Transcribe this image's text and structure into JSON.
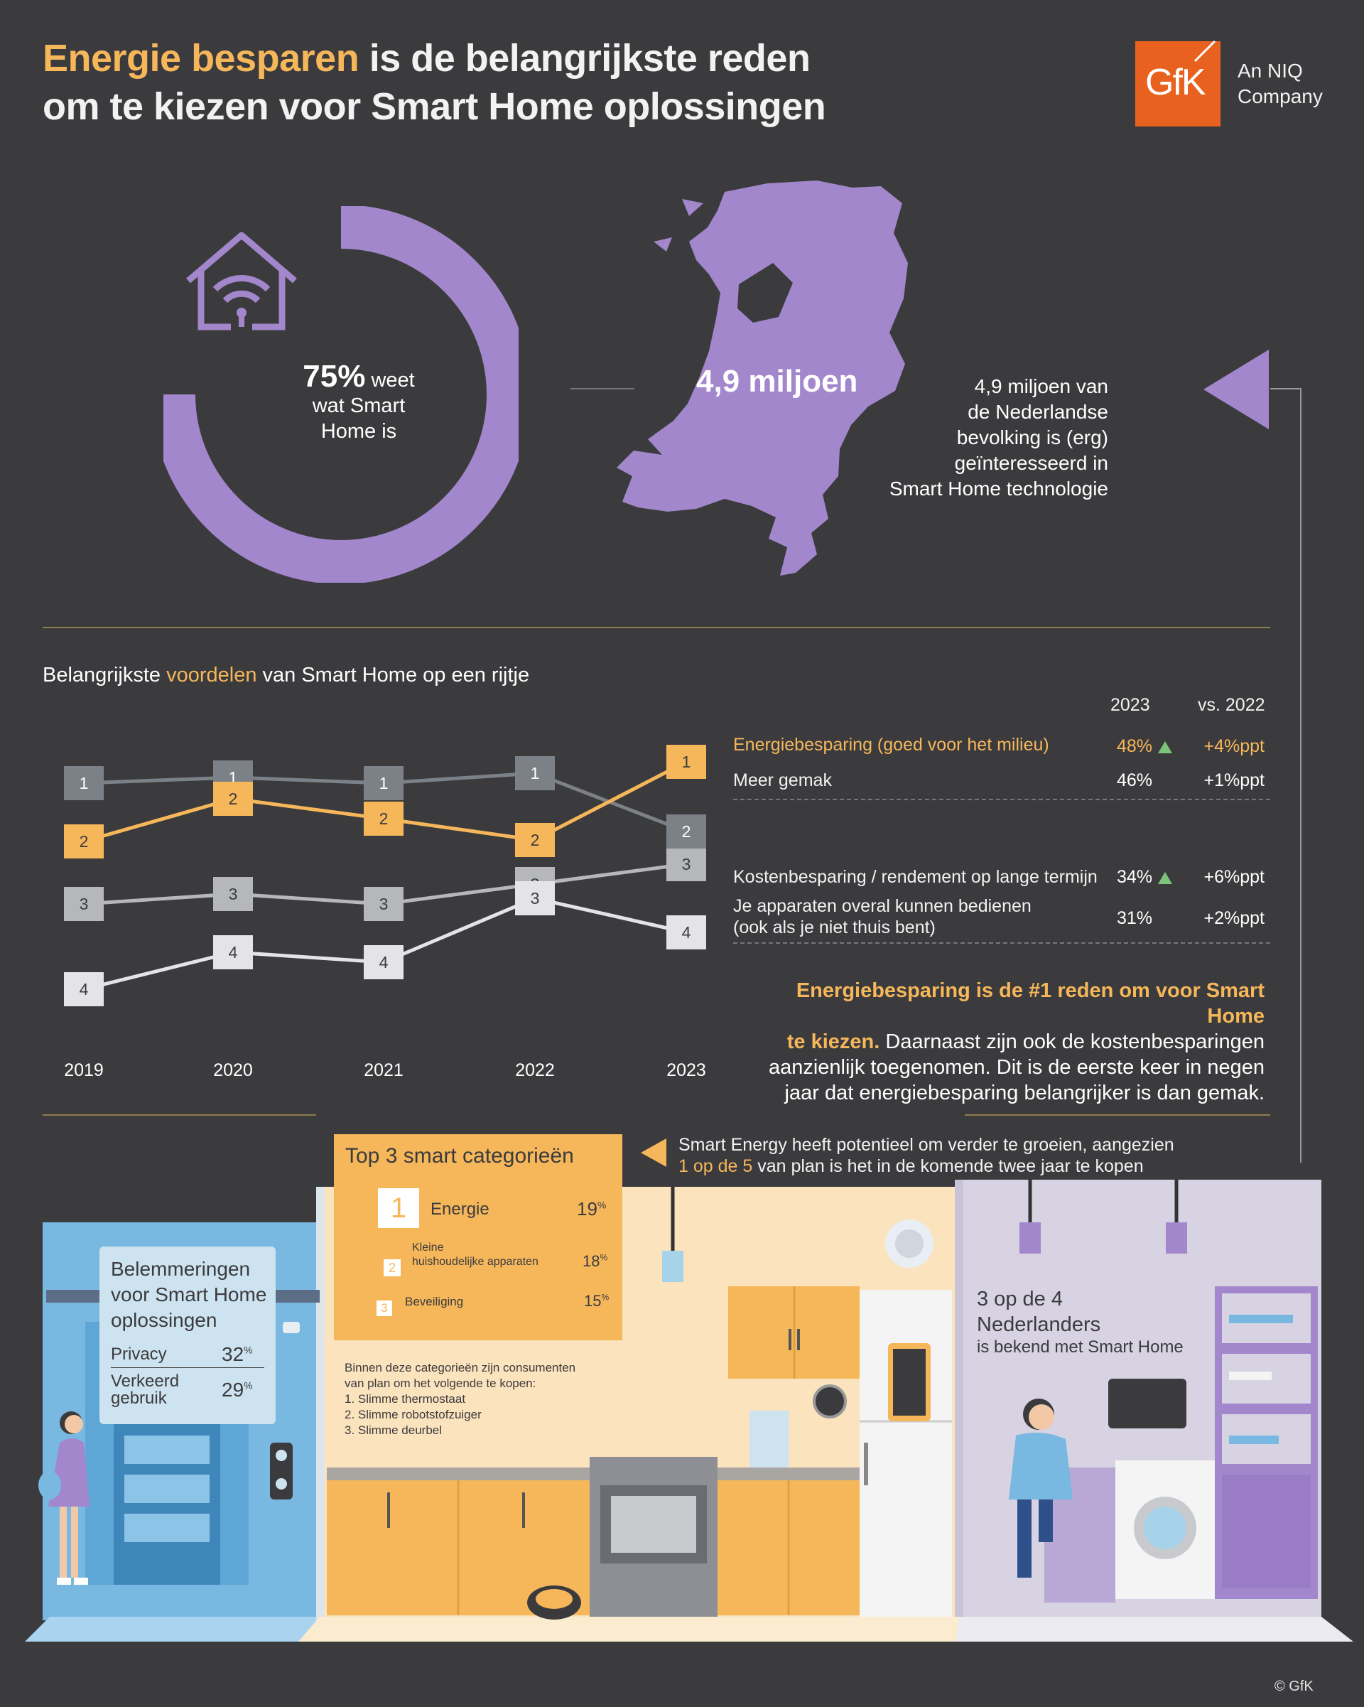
{
  "header": {
    "title_highlight": "Energie besparen",
    "title_rest_line1": " is de belangrijkste reden",
    "title_line2": "om te kiezen voor Smart Home oplossingen",
    "logo_text": "GfK",
    "logo_sub_line1": "An NIQ",
    "logo_sub_line2": "Company"
  },
  "awareness": {
    "percent": "75%",
    "percent_value": 75,
    "text_1": "weet",
    "text_2": "wat Smart",
    "text_3": "Home is",
    "icon": "smart-home-wifi-icon"
  },
  "interest": {
    "map_label": "4,9 miljoen",
    "desc_1": "4,9 miljoen van",
    "desc_2": "de Nederlandse",
    "desc_3": "bevolking is (erg)",
    "desc_4": "geïnteresseerd in",
    "desc_5": "Smart Home technologie"
  },
  "benefits": {
    "title_pre": "Belangrijkste ",
    "title_hl": "voordelen",
    "title_post": " van Smart Home op een rijtje",
    "col_2023": "2023",
    "col_vs": "vs. 2022",
    "rows": [
      {
        "label": "Energiebesparing (goed voor het milieu)",
        "value": "48%",
        "change": "+4%ppt",
        "up": true
      },
      {
        "label": "Meer gemak",
        "value": "46%",
        "change": "+1%ppt",
        "up": false
      },
      {
        "label": "Kostenbesparing / rendement op lange termijn",
        "value": "34%",
        "change": "+6%ppt",
        "up": true
      },
      {
        "label_1": "Je apparaten overal kunnen bedienen",
        "label_2": "(ook als je niet thuis bent)",
        "value": "31%",
        "change": "+2%ppt",
        "up": false
      }
    ],
    "insight_hl_1": "Energiebesparing is de #1 reden om voor Smart Home",
    "insight_hl_2": "te kiezen.",
    "insight_rest_2": " Daarnaast zijn ook de kostenbesparingen",
    "insight_3": "aanzienlijk toegenomen. Dit is de eerste keer in negen",
    "insight_4": "jaar dat energiebesparing belangrijker is dan gemak."
  },
  "chart_data": {
    "type": "line",
    "x": [
      "2019",
      "2020",
      "2021",
      "2022",
      "2023"
    ],
    "yaxis": "rank (1 = most important)",
    "series": [
      {
        "label": "Meer gemak",
        "ranks": [
          1,
          1,
          1,
          1,
          2
        ],
        "color": "#7c8188",
        "text_color": "#ffffff"
      },
      {
        "label": "Energiebesparing",
        "ranks": [
          2,
          2,
          2,
          2,
          1
        ],
        "color": "#f6b75a",
        "text_color": "#3b3b3e"
      },
      {
        "label": "Kostenbesparing",
        "ranks": [
          3,
          3,
          3,
          3,
          3
        ],
        "color": "#b5b7bb",
        "text_color": "#3b3b3e"
      },
      {
        "label": "Overal bedienen",
        "ranks": [
          4,
          4,
          4,
          3,
          4
        ],
        "color": "#e4e4e6",
        "text_color": "#3b3b3e"
      }
    ]
  },
  "categories": {
    "title": "Top 3 smart categorieën",
    "items": [
      {
        "rank": "1",
        "label": "Energie",
        "value": "19",
        "unit": "%"
      },
      {
        "rank": "2",
        "label_1": "Kleine",
        "label_2": "huishoudelijke apparaten",
        "value": "18",
        "unit": "%"
      },
      {
        "rank": "3",
        "label": "Beveiliging",
        "value": "15",
        "unit": "%"
      }
    ],
    "energy_note_1": "Smart Energy heeft potentieel om verder te groeien, aangezien",
    "energy_note_hl": "1 op de 5",
    "energy_note_2": " van plan is het in de komende twee jaar te kopen",
    "plan_intro_1": "Binnen deze categorieën zijn consumenten",
    "plan_intro_2": "van plan om het volgende te kopen:",
    "plan_items": [
      "1. Slimme thermostaat",
      "2. Slimme robotstofzuiger",
      "3. Slimme deurbel"
    ]
  },
  "barriers": {
    "title_1": "Belemmeringen",
    "title_2": "voor Smart Home",
    "title_3": "oplossingen",
    "items": [
      {
        "label_1": "Privacy",
        "value": "32",
        "unit": "%"
      },
      {
        "label_1": "Verkeerd",
        "label_2": "gebruik",
        "value": "29",
        "unit": "%"
      }
    ]
  },
  "aware_note": {
    "line_1": "3 op de 4",
    "line_2": "Nederlanders",
    "line_3": "is bekend met Smart Home"
  },
  "footer": {
    "copyright": "© GfK"
  },
  "colors": {
    "bg": "#3b3b3e",
    "accent": "#f6b75a",
    "purple": "#a387cc",
    "orange": "#e8611f"
  }
}
